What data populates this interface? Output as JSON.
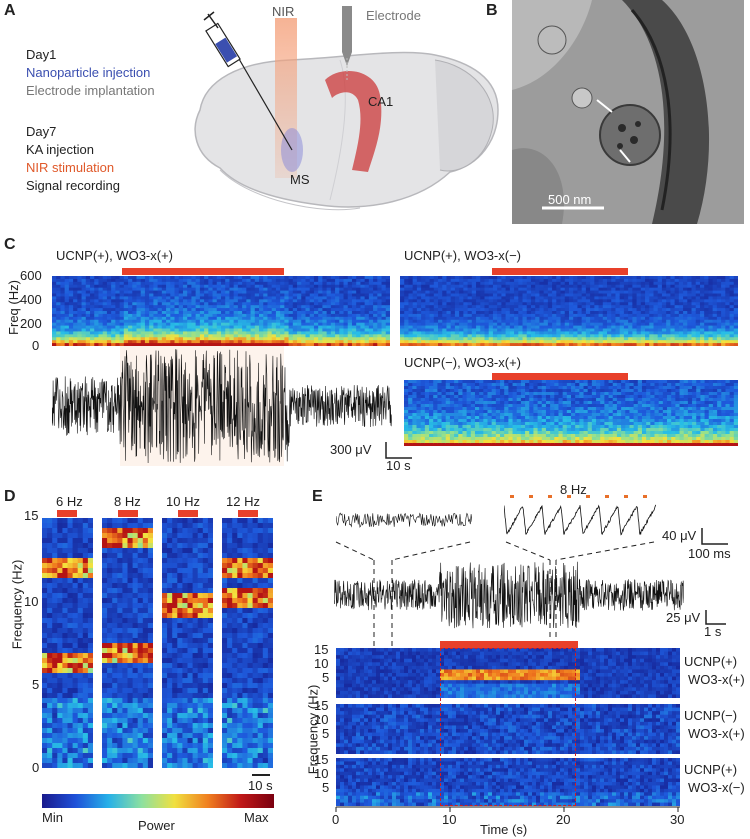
{
  "panels": {
    "A": {
      "letter": "A",
      "day1_title": "Day1",
      "day1_items": [
        "Nanoparticle injection",
        "Electrode implantation"
      ],
      "day7_title": "Day7",
      "day7_items": [
        "KA injection",
        "NIR stimulation",
        "Signal recording"
      ],
      "labels": {
        "nir": "NIR",
        "electrode": "Electrode",
        "ca1": "CA1",
        "ms": "MS"
      },
      "colors": {
        "nanoparticle": "#3b4fb0",
        "electrode": "#777777",
        "nir": "#e0592a",
        "text": "#222222"
      }
    },
    "B": {
      "letter": "B",
      "scale_bar": "500 nm"
    },
    "C": {
      "letter": "C",
      "spectrogram_titles": [
        "UCNP(+), WO3-x(+)",
        "UCNP(+), WO3-x(−)",
        "UCNP(−), WO3-x(+)"
      ],
      "ylabel": "Freq (Hz)",
      "yticks": [
        "600",
        "400",
        "200",
        "0"
      ],
      "scale_v": "300 μV",
      "scale_t": "10 s"
    },
    "D": {
      "letter": "D",
      "stim_freqs": [
        "6 Hz",
        "8 Hz",
        "10 Hz",
        "12 Hz"
      ],
      "ylabel": "Frequency (Hz)",
      "yticks": [
        "15",
        "10",
        "5",
        "0"
      ],
      "scale_t": "10 s",
      "colorbar": {
        "min": "Min",
        "label": "Power",
        "max": "Max"
      }
    },
    "E": {
      "letter": "E",
      "hz_label": "8 Hz",
      "scale_v1": "40 μV",
      "scale_t1": "100 ms",
      "scale_v2": "25 μV",
      "scale_t2": "1 s",
      "ylabel": "Frequency (Hz)",
      "yticks": [
        "15",
        "10",
        "5"
      ],
      "xlabel": "Time (s)",
      "xticks": [
        "0",
        "10",
        "20",
        "30"
      ],
      "rows": [
        {
          "label1": "UCNP(+)",
          "label2": "WO3-x(+)"
        },
        {
          "label1": "UCNP(−)",
          "label2": "WO3-x(+)"
        },
        {
          "label1": "UCNP(+)",
          "label2": "WO3-x(−)"
        }
      ]
    }
  }
}
